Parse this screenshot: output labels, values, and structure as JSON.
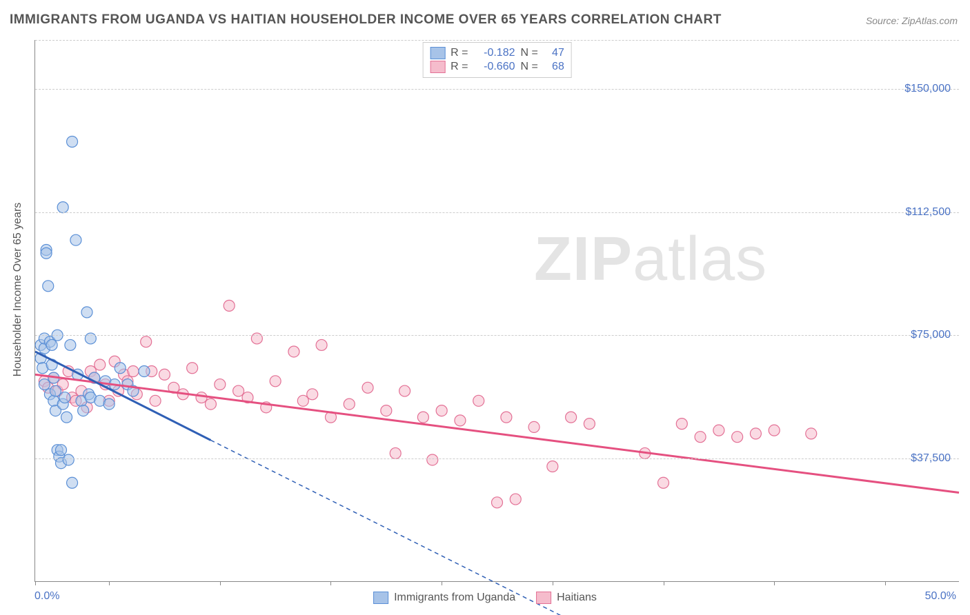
{
  "title": "IMMIGRANTS FROM UGANDA VS HAITIAN HOUSEHOLDER INCOME OVER 65 YEARS CORRELATION CHART",
  "source": "Source: ZipAtlas.com",
  "watermark": "ZIPatlas",
  "y_axis_title": "Householder Income Over 65 years",
  "chart": {
    "type": "scatter-with-regression",
    "xlim": [
      0,
      50
    ],
    "ylim": [
      0,
      165000
    ],
    "x_tick_positions_pct": [
      0,
      8,
      20,
      32,
      44,
      56,
      68,
      80,
      92
    ],
    "y_gridlines": [
      37500,
      75000,
      112500,
      150000
    ],
    "y_tick_labels": [
      "$37,500",
      "$75,000",
      "$112,500",
      "$150,000"
    ],
    "x_label_min": "0.0%",
    "x_label_max": "50.0%",
    "background_color": "#ffffff",
    "grid_color": "#cccccc",
    "axis_color": "#888888",
    "label_color": "#4a72c4",
    "title_color": "#555555",
    "title_fontsize": 19,
    "label_fontsize": 16,
    "marker_radius": 8,
    "marker_opacity": 0.55,
    "line_width_solid": 3,
    "line_width_dashed": 1.5
  },
  "series": [
    {
      "name": "Immigrants from Uganda",
      "fill": "#a7c3e8",
      "stroke": "#5a8fd6",
      "line_color": "#2f5fb5",
      "r_value": "-0.182",
      "n_value": "47",
      "regression": {
        "x1_pct": 0,
        "y1": 70000,
        "x2_pct": 9.5,
        "y2": 43000
      },
      "regression_ext": {
        "x1_pct": 9.5,
        "y1": 43000,
        "x2_pct": 29,
        "y2": -12000
      },
      "points": [
        [
          0.3,
          68000
        ],
        [
          0.3,
          72000
        ],
        [
          0.4,
          65000
        ],
        [
          0.5,
          71000
        ],
        [
          0.5,
          60000
        ],
        [
          0.5,
          74000
        ],
        [
          0.6,
          101000
        ],
        [
          0.6,
          100000
        ],
        [
          0.7,
          90000
        ],
        [
          0.8,
          73000
        ],
        [
          0.8,
          57000
        ],
        [
          0.9,
          66000
        ],
        [
          0.9,
          72000
        ],
        [
          1.0,
          62000
        ],
        [
          1.0,
          55000
        ],
        [
          1.1,
          58000
        ],
        [
          1.1,
          52000
        ],
        [
          1.2,
          75000
        ],
        [
          1.2,
          40000
        ],
        [
          1.3,
          38000
        ],
        [
          1.4,
          36000
        ],
        [
          1.4,
          40000
        ],
        [
          1.5,
          114000
        ],
        [
          1.5,
          54000
        ],
        [
          1.6,
          56000
        ],
        [
          1.7,
          50000
        ],
        [
          1.8,
          37000
        ],
        [
          1.9,
          72000
        ],
        [
          2.0,
          134000
        ],
        [
          2.0,
          30000
        ],
        [
          2.2,
          104000
        ],
        [
          2.3,
          63000
        ],
        [
          2.5,
          55000
        ],
        [
          2.6,
          52000
        ],
        [
          2.8,
          82000
        ],
        [
          2.9,
          57000
        ],
        [
          3.0,
          74000
        ],
        [
          3.0,
          56000
        ],
        [
          3.2,
          62000
        ],
        [
          3.5,
          55000
        ],
        [
          3.8,
          61000
        ],
        [
          4.0,
          54000
        ],
        [
          4.3,
          60000
        ],
        [
          4.6,
          65000
        ],
        [
          5.0,
          60000
        ],
        [
          5.3,
          58000
        ],
        [
          5.9,
          64000
        ]
      ]
    },
    {
      "name": "Haitians",
      "fill": "#f5bccc",
      "stroke": "#e37095",
      "line_color": "#e55080",
      "r_value": "-0.660",
      "n_value": "68",
      "regression": {
        "x1_pct": 0,
        "y1": 63000,
        "x2_pct": 50,
        "y2": 27000
      },
      "points": [
        [
          0.5,
          61000
        ],
        [
          0.7,
          59000
        ],
        [
          1.0,
          62000
        ],
        [
          1.2,
          58000
        ],
        [
          1.5,
          60000
        ],
        [
          1.8,
          64000
        ],
        [
          2.0,
          56000
        ],
        [
          2.2,
          55000
        ],
        [
          2.5,
          58000
        ],
        [
          2.8,
          53000
        ],
        [
          3.0,
          64000
        ],
        [
          3.2,
          62000
        ],
        [
          3.5,
          66000
        ],
        [
          3.8,
          60000
        ],
        [
          4.0,
          55000
        ],
        [
          4.3,
          67000
        ],
        [
          4.5,
          58000
        ],
        [
          4.8,
          63000
        ],
        [
          5.0,
          61000
        ],
        [
          5.3,
          64000
        ],
        [
          5.5,
          57000
        ],
        [
          6.0,
          73000
        ],
        [
          6.3,
          64000
        ],
        [
          6.5,
          55000
        ],
        [
          7.0,
          63000
        ],
        [
          7.5,
          59000
        ],
        [
          8.0,
          57000
        ],
        [
          8.5,
          65000
        ],
        [
          9.0,
          56000
        ],
        [
          9.5,
          54000
        ],
        [
          10.0,
          60000
        ],
        [
          10.5,
          84000
        ],
        [
          11.0,
          58000
        ],
        [
          11.5,
          56000
        ],
        [
          12.0,
          74000
        ],
        [
          12.5,
          53000
        ],
        [
          13.0,
          61000
        ],
        [
          14.0,
          70000
        ],
        [
          14.5,
          55000
        ],
        [
          15.0,
          57000
        ],
        [
          15.5,
          72000
        ],
        [
          16.0,
          50000
        ],
        [
          17.0,
          54000
        ],
        [
          18.0,
          59000
        ],
        [
          19.0,
          52000
        ],
        [
          19.5,
          39000
        ],
        [
          20.0,
          58000
        ],
        [
          21.0,
          50000
        ],
        [
          21.5,
          37000
        ],
        [
          22.0,
          52000
        ],
        [
          23.0,
          49000
        ],
        [
          24.0,
          55000
        ],
        [
          25.0,
          24000
        ],
        [
          25.5,
          50000
        ],
        [
          26.0,
          25000
        ],
        [
          27.0,
          47000
        ],
        [
          28.0,
          35000
        ],
        [
          29.0,
          50000
        ],
        [
          30.0,
          48000
        ],
        [
          33.0,
          39000
        ],
        [
          34.0,
          30000
        ],
        [
          35.0,
          48000
        ],
        [
          36.0,
          44000
        ],
        [
          37.0,
          46000
        ],
        [
          38.0,
          44000
        ],
        [
          39.0,
          45000
        ],
        [
          40.0,
          46000
        ],
        [
          42.0,
          45000
        ]
      ]
    }
  ],
  "stats_legend_labels": {
    "r": "R =",
    "n": "N ="
  },
  "bottom_legend_labels": [
    "Immigrants from Uganda",
    "Haitians"
  ]
}
